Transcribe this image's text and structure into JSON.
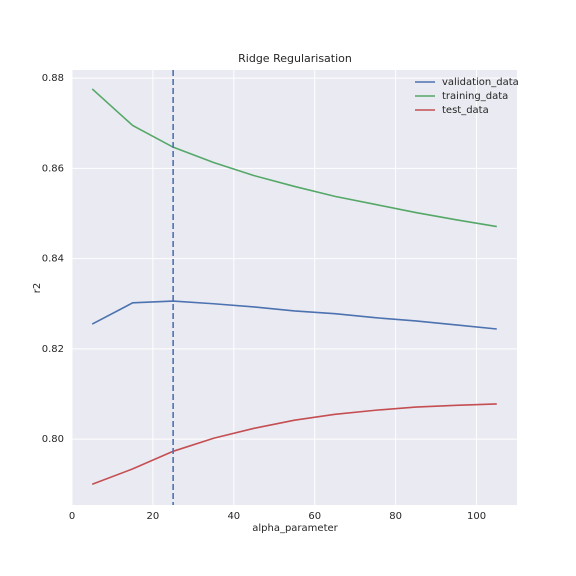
{
  "chart_data": {
    "type": "line",
    "title": "Ridge Regularisation",
    "x_label": "alpha_parameter",
    "y_label": "r2",
    "x": [
      5,
      15,
      25,
      35,
      45,
      55,
      65,
      75,
      85,
      95,
      105
    ],
    "series": [
      {
        "name": "validation_data",
        "color": "#4c72b0",
        "values": [
          0.8255,
          0.8302,
          0.8306,
          0.83,
          0.8293,
          0.8284,
          0.8278,
          0.8269,
          0.8262,
          0.8253,
          0.8244
        ]
      },
      {
        "name": "training_data",
        "color": "#55a868",
        "values": [
          0.8776,
          0.8695,
          0.8647,
          0.8613,
          0.8584,
          0.856,
          0.8538,
          0.852,
          0.8502,
          0.8486,
          0.8471
        ]
      },
      {
        "name": "test_data",
        "color": "#c44e52",
        "values": [
          0.79,
          0.7934,
          0.7973,
          0.8002,
          0.8024,
          0.8042,
          0.8055,
          0.8064,
          0.8071,
          0.8075,
          0.8078
        ]
      }
    ],
    "vline": {
      "x": 25,
      "color": "#4c72b0",
      "dashed": true
    },
    "xlim": [
      0,
      110
    ],
    "xticks": [
      0,
      20,
      40,
      60,
      80,
      100
    ],
    "ylim": [
      0.7854,
      0.8818
    ],
    "yticks": [
      {
        "value": 0.8,
        "label": "0.80"
      },
      0.82,
      0.84,
      0.86,
      0.88
    ],
    "grid": true,
    "legend": "upper right"
  }
}
